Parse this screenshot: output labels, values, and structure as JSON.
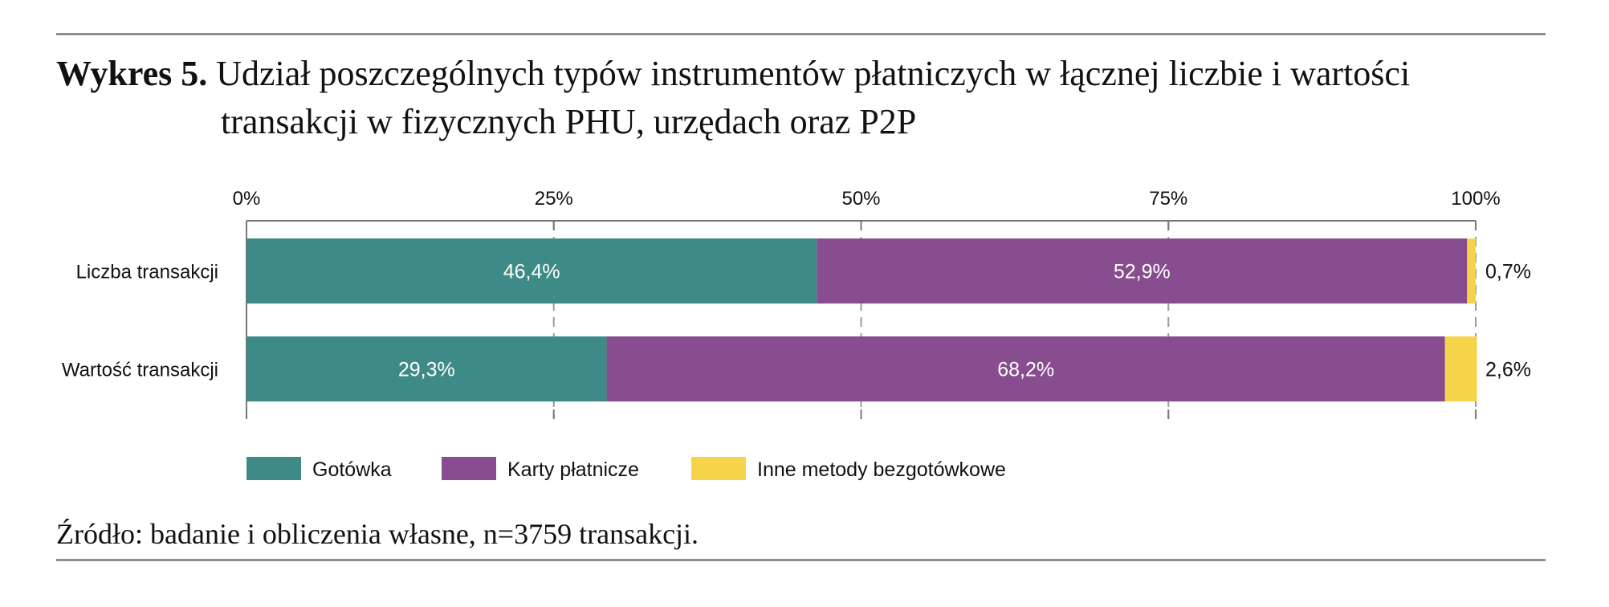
{
  "title": {
    "prefix": "Wykres 5.",
    "line1": "Udział poszczególnych typów instrumentów płatniczych w łącznej liczbie i wartości",
    "line2": "transakcji w fizycznych PHU, urzędach oraz P2P"
  },
  "source": "Źródło: badanie i obliczenia własne, n=3759 transakcji.",
  "colors": {
    "Gotówka": "#3d8a87",
    "Karty płatnicze": "#874d8e",
    "Inne metody bezgotówkowe": "#f6d44a"
  },
  "chart_data": {
    "type": "bar",
    "orientation": "horizontal",
    "stacked": true,
    "categories": [
      "Liczba transakcji",
      "Wartość transakcji"
    ],
    "series": [
      {
        "name": "Gotówka",
        "values": [
          46.4,
          29.3
        ],
        "labels": [
          "46,4%",
          "29,3%"
        ]
      },
      {
        "name": "Karty płatnicze",
        "values": [
          52.9,
          68.2
        ],
        "labels": [
          "52,9%",
          "68,2%"
        ]
      },
      {
        "name": "Inne metody bezgotówkowe",
        "values": [
          0.7,
          2.6
        ],
        "labels": [
          "0,7%",
          "2,6%"
        ]
      }
    ],
    "xlim": [
      0,
      100
    ],
    "xticks": [
      "0%",
      "25%",
      "50%",
      "75%",
      "100%"
    ],
    "grid": "vertical dashed",
    "legend": "bottom"
  }
}
